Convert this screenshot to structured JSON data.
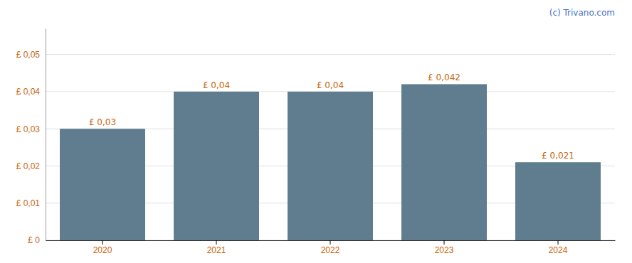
{
  "chart_data": {
    "type": "bar",
    "categories": [
      "2020",
      "2021",
      "2022",
      "2023",
      "2024"
    ],
    "values": [
      0.03,
      0.04,
      0.04,
      0.042,
      0.021
    ],
    "value_labels": [
      "£ 0,03",
      "£ 0,04",
      "£ 0,04",
      "£ 0,042",
      "£ 0,021"
    ],
    "data_labels": true,
    "color": "#5f7d8e",
    "ylim": [
      0,
      0.057
    ],
    "yticks": [
      {
        "value": 0,
        "label": "£ 0"
      },
      {
        "value": 0.01,
        "label": "£ 0,01"
      },
      {
        "value": 0.02,
        "label": "£ 0,02"
      },
      {
        "value": 0.03,
        "label": "£ 0,03"
      },
      {
        "value": 0.04,
        "label": "£ 0,04"
      },
      {
        "value": 0.05,
        "label": "£ 0,05"
      }
    ],
    "grid": true,
    "annotation": "(c) Trivano.com"
  }
}
